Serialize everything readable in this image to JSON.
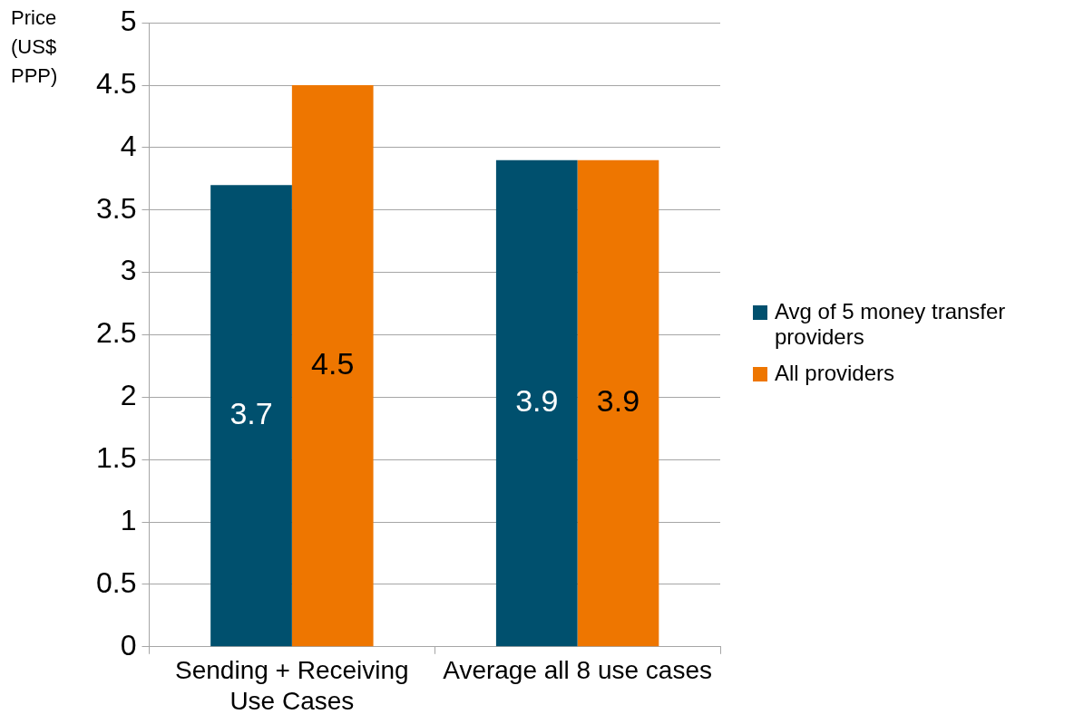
{
  "chart_data": {
    "type": "bar",
    "ylabel": "Price (US$ PPP)",
    "categories": [
      "Sending + Receiving Use Cases",
      "Average all 8 use cases"
    ],
    "series": [
      {
        "name": "Avg of 5 money transfer providers",
        "color": "#00506e",
        "values": [
          3.7,
          3.9
        ]
      },
      {
        "name": "All providers",
        "color": "#ee7600",
        "values": [
          4.5,
          3.9
        ]
      }
    ],
    "ylim": [
      0,
      5
    ],
    "yticks": [
      0,
      0.5,
      1,
      1.5,
      2,
      2.5,
      3,
      3.5,
      4,
      4.5,
      5
    ],
    "grid": "y",
    "legend": "right",
    "data_labels": true
  }
}
